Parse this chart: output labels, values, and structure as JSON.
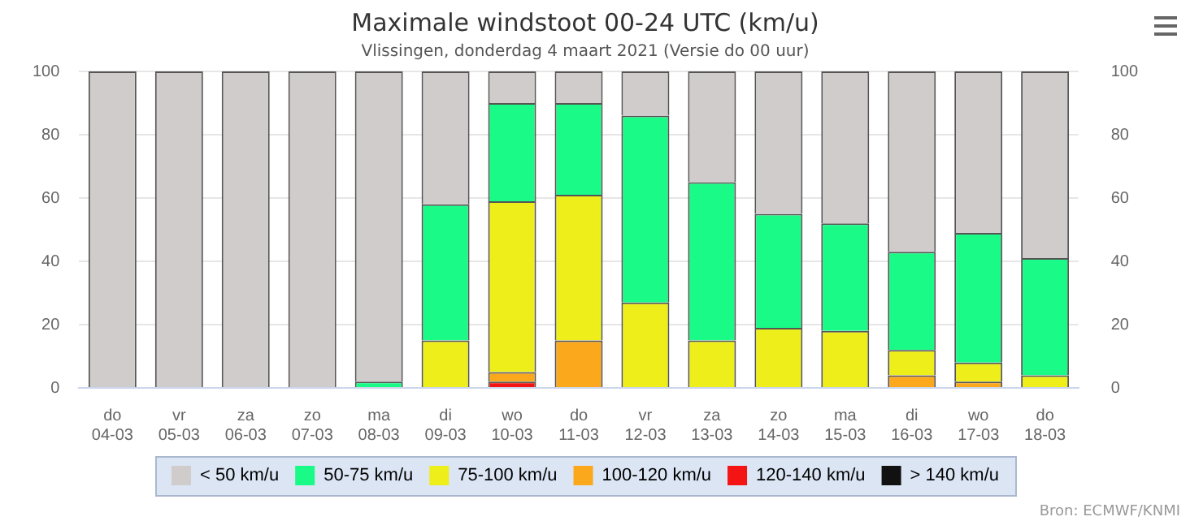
{
  "chart_data": {
    "type": "bar",
    "title": "Maximale windstoot 00-24 UTC (km/u)",
    "subtitle": "Vlissingen, donderdag 4 maart 2021 (Versie do 00 uur)",
    "categories": [
      "do\n04-03",
      "vr\n05-03",
      "za\n06-03",
      "zo\n07-03",
      "ma\n08-03",
      "di\n09-03",
      "wo\n10-03",
      "do\n11-03",
      "vr\n12-03",
      "za\n13-03",
      "zo\n14-03",
      "ma\n15-03",
      "di\n16-03",
      "wo\n17-03",
      "do\n18-03"
    ],
    "stacked": true,
    "series": [
      {
        "name": "> 140 km/u",
        "color": "#111111",
        "values": [
          0,
          0,
          0,
          0,
          0,
          0,
          0,
          0,
          0,
          0,
          0,
          0,
          0,
          0,
          0
        ]
      },
      {
        "name": "120-140 km/u",
        "color": "#f51414",
        "values": [
          0,
          0,
          0,
          0,
          0,
          0,
          2,
          0,
          0,
          0,
          0,
          0,
          0,
          0,
          0
        ]
      },
      {
        "name": "100-120 km/u",
        "color": "#fba81c",
        "values": [
          0,
          0,
          0,
          0,
          0,
          0,
          3,
          15,
          0,
          0,
          0,
          0,
          4,
          2,
          0
        ]
      },
      {
        "name": "75-100 km/u",
        "color": "#eeee1a",
        "values": [
          0,
          0,
          0,
          0,
          0,
          15,
          54,
          46,
          27,
          15,
          19,
          18,
          8,
          6,
          4
        ]
      },
      {
        "name": "50-75 km/u",
        "color": "#19fb86",
        "values": [
          0,
          0,
          0,
          0,
          2,
          43,
          31,
          29,
          59,
          50,
          36,
          34,
          31,
          41,
          37
        ]
      },
      {
        "name": "< 50 km/u",
        "color": "#d0cccc",
        "values": [
          100,
          100,
          100,
          100,
          98,
          42,
          10,
          10,
          14,
          35,
          45,
          48,
          57,
          51,
          59
        ]
      }
    ],
    "ylim": [
      0,
      100
    ],
    "yticks": [
      0,
      20,
      40,
      60,
      80,
      100
    ],
    "y2lim": [
      0,
      100
    ],
    "y2ticks": [
      0,
      20,
      40,
      60,
      80,
      100
    ],
    "grid": "y",
    "legend": "bottom",
    "annotations": [
      "Bron: ECMWF/KNMI"
    ]
  }
}
